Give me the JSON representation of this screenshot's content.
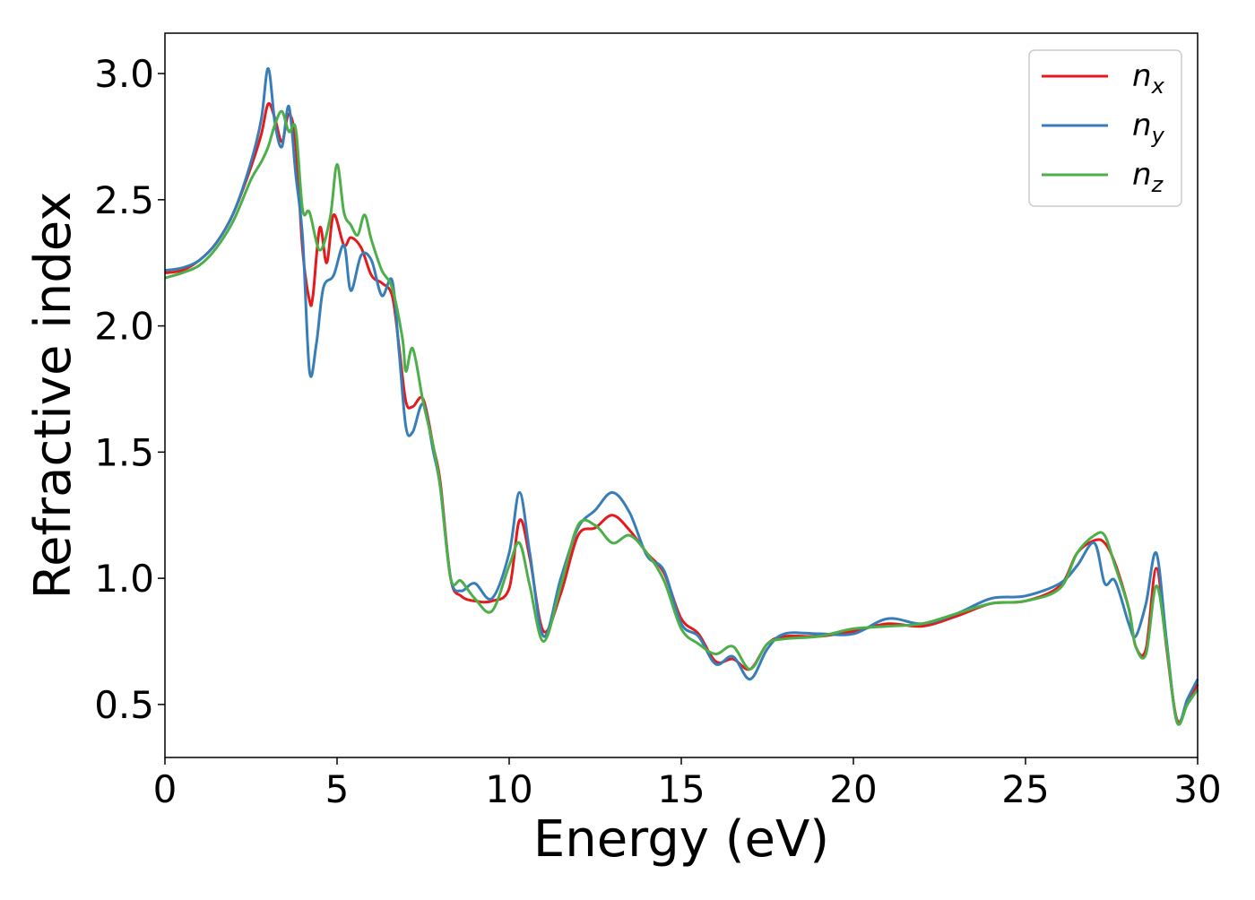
{
  "chart_data": {
    "type": "line",
    "title": "",
    "xlabel": "Energy (eV)",
    "ylabel": "Refractive index",
    "xlim": [
      0,
      30
    ],
    "ylim": [
      0.29,
      3.16
    ],
    "xticks": [
      0,
      5,
      10,
      15,
      20,
      25,
      30
    ],
    "xtick_labels": [
      "0",
      "5",
      "10",
      "15",
      "20",
      "25",
      "30"
    ],
    "yticks": [
      0.5,
      1.0,
      1.5,
      2.0,
      2.5,
      3.0
    ],
    "ytick_labels": [
      "0.5",
      "1.0",
      "1.5",
      "2.0",
      "2.5",
      "3.0"
    ],
    "grid": false,
    "legend_position": "top-right",
    "series": [
      {
        "name": "n_x",
        "legend_base": "n",
        "legend_sub": "x",
        "color": "#e41a1c",
        "x": [
          0,
          0.5,
          1,
          1.5,
          2,
          2.5,
          2.8,
          3.0,
          3.2,
          3.4,
          3.6,
          3.8,
          4.0,
          4.2,
          4.3,
          4.5,
          4.7,
          4.9,
          5.2,
          5.4,
          5.7,
          6.0,
          6.3,
          6.6,
          6.8,
          7.0,
          7.2,
          7.5,
          7.8,
          8.0,
          8.3,
          8.6,
          9.0,
          9.5,
          10.0,
          10.3,
          10.6,
          11.0,
          11.5,
          12.0,
          12.5,
          13.0,
          13.5,
          14.0,
          14.5,
          15.0,
          15.5,
          16.0,
          16.5,
          17.0,
          17.5,
          18.0,
          19.0,
          20.0,
          21.0,
          22.0,
          23.0,
          24.0,
          25.0,
          26.0,
          26.5,
          27.0,
          27.3,
          27.6,
          28.0,
          28.2,
          28.5,
          28.8,
          29.1,
          29.4,
          29.7,
          30.0
        ],
        "y": [
          2.21,
          2.22,
          2.26,
          2.33,
          2.45,
          2.63,
          2.76,
          2.88,
          2.82,
          2.73,
          2.84,
          2.72,
          2.3,
          2.1,
          2.12,
          2.39,
          2.25,
          2.44,
          2.32,
          2.35,
          2.31,
          2.2,
          2.17,
          2.12,
          1.92,
          1.7,
          1.68,
          1.71,
          1.52,
          1.38,
          1.0,
          0.93,
          0.91,
          0.91,
          0.96,
          1.23,
          1.08,
          0.79,
          0.94,
          1.17,
          1.2,
          1.25,
          1.19,
          1.1,
          1.02,
          0.84,
          0.78,
          0.67,
          0.68,
          0.64,
          0.74,
          0.77,
          0.77,
          0.79,
          0.82,
          0.81,
          0.85,
          0.9,
          0.91,
          0.97,
          1.1,
          1.15,
          1.14,
          1.06,
          0.88,
          0.73,
          0.72,
          1.04,
          0.72,
          0.44,
          0.5,
          0.58
        ]
      },
      {
        "name": "n_y",
        "legend_base": "n",
        "legend_sub": "y",
        "color": "#377eb8",
        "x": [
          0,
          0.5,
          1,
          1.5,
          2,
          2.5,
          2.8,
          3.0,
          3.2,
          3.4,
          3.6,
          3.8,
          4.0,
          4.2,
          4.4,
          4.6,
          4.9,
          5.2,
          5.4,
          5.7,
          6.0,
          6.3,
          6.6,
          6.8,
          7.0,
          7.2,
          7.5,
          7.8,
          8.0,
          8.3,
          8.6,
          9.0,
          9.5,
          10.0,
          10.3,
          10.6,
          11.0,
          11.5,
          12.0,
          12.5,
          13.0,
          13.5,
          14.0,
          14.5,
          15.0,
          15.5,
          16.0,
          16.5,
          17.0,
          17.5,
          18.0,
          19.0,
          20.0,
          21.0,
          22.0,
          23.0,
          24.0,
          25.0,
          26.0,
          26.5,
          27.0,
          27.3,
          27.6,
          28.0,
          28.2,
          28.5,
          28.8,
          29.1,
          29.4,
          29.7,
          30.0
        ],
        "y": [
          2.22,
          2.23,
          2.26,
          2.33,
          2.45,
          2.65,
          2.82,
          3.02,
          2.8,
          2.71,
          2.87,
          2.6,
          2.35,
          1.82,
          1.93,
          2.15,
          2.2,
          2.32,
          2.14,
          2.28,
          2.26,
          2.12,
          2.18,
          1.9,
          1.6,
          1.58,
          1.69,
          1.5,
          1.36,
          1.0,
          0.95,
          0.98,
          0.92,
          1.1,
          1.34,
          1.1,
          0.77,
          1.0,
          1.2,
          1.27,
          1.34,
          1.26,
          1.09,
          1.03,
          0.82,
          0.77,
          0.66,
          0.69,
          0.6,
          0.72,
          0.78,
          0.78,
          0.78,
          0.84,
          0.82,
          0.86,
          0.92,
          0.93,
          0.98,
          1.05,
          1.14,
          0.98,
          0.99,
          0.82,
          0.77,
          0.9,
          1.1,
          0.75,
          0.43,
          0.52,
          0.6
        ]
      },
      {
        "name": "n_z",
        "legend_base": "n",
        "legend_sub": "z",
        "color": "#4daf4a",
        "x": [
          0,
          0.5,
          1,
          1.5,
          2,
          2.5,
          2.8,
          3.0,
          3.2,
          3.4,
          3.6,
          3.8,
          4.0,
          4.2,
          4.5,
          4.8,
          5.0,
          5.2,
          5.4,
          5.6,
          5.8,
          6.0,
          6.3,
          6.6,
          6.9,
          7.0,
          7.2,
          7.5,
          7.8,
          8.0,
          8.3,
          8.6,
          9.0,
          9.5,
          10.0,
          10.3,
          10.6,
          11.0,
          11.5,
          12.0,
          12.5,
          13.0,
          13.5,
          14.0,
          14.5,
          15.0,
          15.5,
          16.0,
          16.5,
          17.0,
          17.5,
          18.0,
          19.0,
          20.0,
          21.0,
          22.0,
          23.0,
          24.0,
          25.0,
          26.0,
          26.5,
          27.0,
          27.3,
          27.6,
          28.0,
          28.2,
          28.5,
          28.8,
          29.1,
          29.4,
          29.7,
          30.0
        ],
        "y": [
          2.19,
          2.21,
          2.24,
          2.31,
          2.42,
          2.58,
          2.65,
          2.71,
          2.8,
          2.85,
          2.77,
          2.78,
          2.46,
          2.45,
          2.3,
          2.43,
          2.64,
          2.45,
          2.4,
          2.36,
          2.44,
          2.34,
          2.22,
          2.15,
          1.95,
          1.82,
          1.91,
          1.7,
          1.52,
          1.36,
          1.0,
          0.99,
          0.92,
          0.87,
          1.05,
          1.14,
          0.97,
          0.75,
          0.97,
          1.21,
          1.21,
          1.14,
          1.17,
          1.1,
          0.99,
          0.8,
          0.74,
          0.7,
          0.73,
          0.64,
          0.74,
          0.76,
          0.77,
          0.8,
          0.81,
          0.82,
          0.86,
          0.9,
          0.91,
          0.96,
          1.1,
          1.17,
          1.17,
          1.05,
          0.88,
          0.73,
          0.7,
          0.97,
          0.73,
          0.43,
          0.5,
          0.56
        ]
      }
    ]
  }
}
